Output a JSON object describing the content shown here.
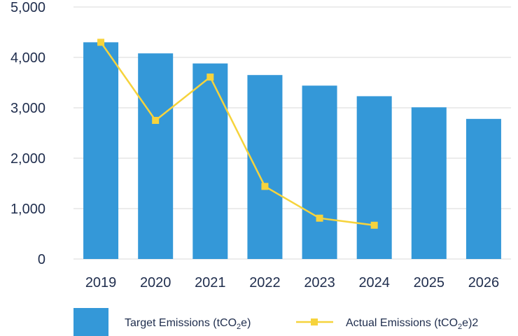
{
  "chart_data": {
    "type": "bar",
    "title": "",
    "xlabel": "",
    "ylabel": "",
    "ylim": [
      0,
      5000
    ],
    "yticks": [
      0,
      1000,
      2000,
      3000,
      4000,
      5000
    ],
    "ytick_labels": [
      "0",
      "1,000",
      "2,000",
      "3,000",
      "4,000",
      "5,000"
    ],
    "grid": true,
    "legend_position": "bottom",
    "categories": [
      "2019",
      "2020",
      "2021",
      "2022",
      "2023",
      "2024",
      "2025",
      "2026"
    ],
    "series": [
      {
        "name": "Target Emissions (tCO2e)",
        "kind": "bar",
        "color": "#3498d8",
        "values": [
          4300,
          4080,
          3880,
          3650,
          3440,
          3230,
          3010,
          2780
        ]
      },
      {
        "name": "Actual Emissions (tCO2e)2",
        "kind": "line",
        "marker": "square",
        "color": "#f6d33c",
        "values": [
          4300,
          2750,
          3610,
          1440,
          810,
          670,
          null,
          null
        ]
      }
    ]
  },
  "legend": {
    "bar_label": {
      "pre": "Target Emissions (tCO",
      "sub": "2",
      "post": "e)"
    },
    "line_label": {
      "pre": "Actual Emissions (tCO",
      "sub": "2",
      "post": "e)2"
    }
  }
}
